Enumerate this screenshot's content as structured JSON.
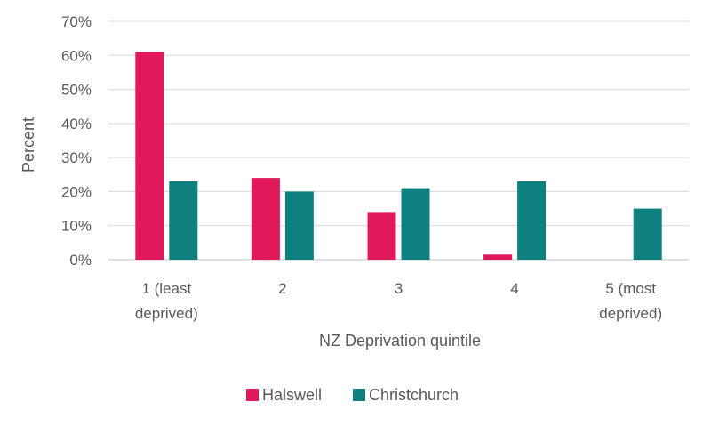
{
  "chart_data": {
    "type": "bar",
    "categories": [
      [
        "1 (least",
        "deprived)"
      ],
      [
        "2"
      ],
      [
        "3"
      ],
      [
        "4"
      ],
      [
        "5 (most",
        "deprived)"
      ]
    ],
    "series": [
      {
        "name": "Halswell",
        "color": "#e0195a",
        "values": [
          61,
          24,
          14,
          1.5,
          0
        ]
      },
      {
        "name": "Christchurch",
        "color": "#0f8080",
        "values": [
          23,
          20,
          21,
          23,
          15
        ]
      }
    ],
    "yticks": [
      "0%",
      "10%",
      "20%",
      "30%",
      "40%",
      "50%",
      "60%",
      "70%"
    ],
    "ylim": [
      0,
      70
    ],
    "ylabel": "Percent",
    "xlabel": "NZ Deprivation quintile",
    "grid": true,
    "legend": "bottom"
  }
}
